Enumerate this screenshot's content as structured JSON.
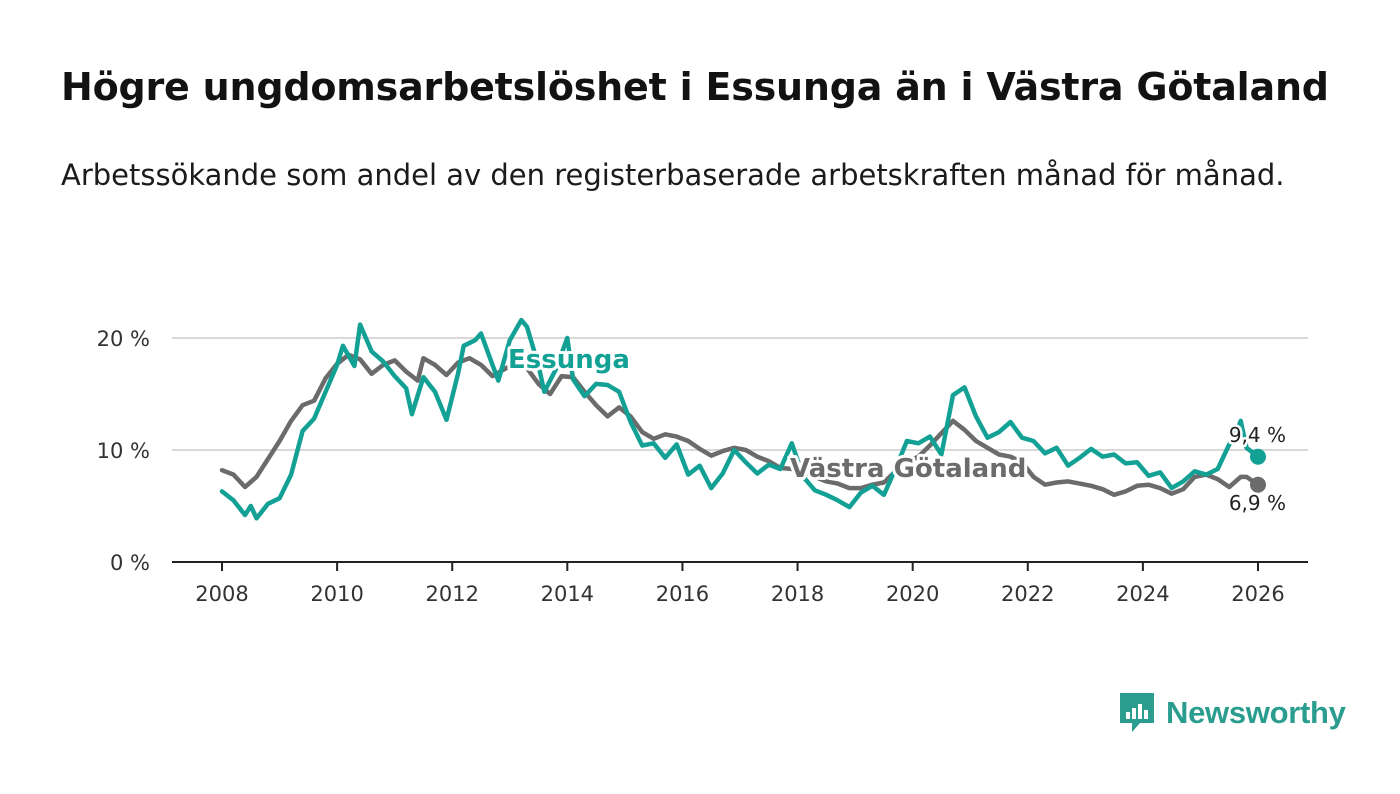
{
  "title": "Högre ungdomsarbetslöshet i Essunga än i Västra Götaland",
  "subtitle": "Arbetssökande som andel av den registerbaserade arbetskraften månad för månad.",
  "brand": {
    "name": "Newsworthy",
    "icon": "newsworthy-logo-icon",
    "color": "#2a9d8f"
  },
  "chart_data": {
    "type": "line",
    "title": "Högre ungdomsarbetslöshet i Essunga än i Västra Götaland",
    "xlabel": "",
    "ylabel": "",
    "x_range": [
      2007.1,
      2026.9
    ],
    "ylim": [
      0,
      20
    ],
    "grid": true,
    "x_ticks": [
      2008,
      2010,
      2012,
      2014,
      2016,
      2018,
      2020,
      2022,
      2024,
      2026
    ],
    "x_tick_labels": [
      "2008",
      "2010",
      "2012",
      "2014",
      "2016",
      "2018",
      "2020",
      "2022",
      "2024",
      "2026"
    ],
    "y_ticks": [
      0,
      10,
      20
    ],
    "y_tick_labels": [
      "0 %",
      "10 %",
      "20 %"
    ],
    "series": [
      {
        "name": "Essunga",
        "color": "#13a196",
        "end_label": "9,4 %",
        "end_value": 9.4,
        "points": [
          [
            2008.0,
            6.3
          ],
          [
            2008.2,
            5.5
          ],
          [
            2008.4,
            4.2
          ],
          [
            2008.5,
            5.0
          ],
          [
            2008.6,
            3.9
          ],
          [
            2008.8,
            5.2
          ],
          [
            2009.0,
            5.7
          ],
          [
            2009.2,
            7.8
          ],
          [
            2009.4,
            11.7
          ],
          [
            2009.6,
            12.8
          ],
          [
            2009.8,
            15.2
          ],
          [
            2010.0,
            17.6
          ],
          [
            2010.1,
            19.3
          ],
          [
            2010.3,
            17.5
          ],
          [
            2010.4,
            21.2
          ],
          [
            2010.6,
            18.8
          ],
          [
            2010.8,
            17.9
          ],
          [
            2011.0,
            16.6
          ],
          [
            2011.2,
            15.5
          ],
          [
            2011.3,
            13.2
          ],
          [
            2011.5,
            16.5
          ],
          [
            2011.7,
            15.2
          ],
          [
            2011.9,
            12.7
          ],
          [
            2012.1,
            16.8
          ],
          [
            2012.2,
            19.3
          ],
          [
            2012.4,
            19.8
          ],
          [
            2012.5,
            20.4
          ],
          [
            2012.7,
            17.6
          ],
          [
            2012.8,
            16.2
          ],
          [
            2013.0,
            19.8
          ],
          [
            2013.2,
            21.6
          ],
          [
            2013.3,
            21.0
          ],
          [
            2013.5,
            17.5
          ],
          [
            2013.6,
            15.2
          ],
          [
            2013.8,
            17.2
          ],
          [
            2014.0,
            20.0
          ],
          [
            2014.1,
            16.3
          ],
          [
            2014.3,
            14.8
          ],
          [
            2014.5,
            15.9
          ],
          [
            2014.7,
            15.8
          ],
          [
            2014.9,
            15.2
          ],
          [
            2015.1,
            12.5
          ],
          [
            2015.3,
            10.4
          ],
          [
            2015.5,
            10.6
          ],
          [
            2015.7,
            9.3
          ],
          [
            2015.9,
            10.5
          ],
          [
            2016.1,
            7.8
          ],
          [
            2016.3,
            8.6
          ],
          [
            2016.5,
            6.6
          ],
          [
            2016.7,
            7.9
          ],
          [
            2016.9,
            10.0
          ],
          [
            2017.1,
            8.9
          ],
          [
            2017.3,
            7.9
          ],
          [
            2017.5,
            8.7
          ],
          [
            2017.7,
            8.3
          ],
          [
            2017.9,
            10.6
          ],
          [
            2018.1,
            7.6
          ],
          [
            2018.3,
            6.4
          ],
          [
            2018.5,
            6.0
          ],
          [
            2018.7,
            5.5
          ],
          [
            2018.9,
            4.9
          ],
          [
            2019.1,
            6.2
          ],
          [
            2019.3,
            6.8
          ],
          [
            2019.5,
            6.0
          ],
          [
            2019.7,
            8.3
          ],
          [
            2019.9,
            10.8
          ],
          [
            2020.1,
            10.6
          ],
          [
            2020.3,
            11.2
          ],
          [
            2020.5,
            9.6
          ],
          [
            2020.7,
            14.9
          ],
          [
            2020.9,
            15.6
          ],
          [
            2021.1,
            13.0
          ],
          [
            2021.3,
            11.1
          ],
          [
            2021.5,
            11.6
          ],
          [
            2021.7,
            12.5
          ],
          [
            2021.9,
            11.1
          ],
          [
            2022.1,
            10.8
          ],
          [
            2022.3,
            9.7
          ],
          [
            2022.5,
            10.2
          ],
          [
            2022.7,
            8.6
          ],
          [
            2022.9,
            9.3
          ],
          [
            2023.1,
            10.1
          ],
          [
            2023.3,
            9.4
          ],
          [
            2023.5,
            9.6
          ],
          [
            2023.7,
            8.8
          ],
          [
            2023.9,
            8.9
          ],
          [
            2024.1,
            7.7
          ],
          [
            2024.3,
            8.0
          ],
          [
            2024.5,
            6.6
          ],
          [
            2024.7,
            7.2
          ],
          [
            2024.9,
            8.1
          ],
          [
            2025.1,
            7.8
          ],
          [
            2025.3,
            8.3
          ],
          [
            2025.5,
            10.5
          ],
          [
            2025.6,
            11.2
          ],
          [
            2025.7,
            12.6
          ],
          [
            2025.8,
            10.2
          ],
          [
            2026.0,
            9.4
          ]
        ]
      },
      {
        "name": "Västra Götaland",
        "color": "#6b6b6b",
        "end_label": "6,9 %",
        "end_value": 6.9,
        "points": [
          [
            2008.0,
            8.2
          ],
          [
            2008.2,
            7.8
          ],
          [
            2008.4,
            6.7
          ],
          [
            2008.6,
            7.6
          ],
          [
            2008.8,
            9.2
          ],
          [
            2009.0,
            10.8
          ],
          [
            2009.2,
            12.6
          ],
          [
            2009.4,
            14.0
          ],
          [
            2009.6,
            14.4
          ],
          [
            2009.8,
            16.4
          ],
          [
            2010.0,
            17.7
          ],
          [
            2010.2,
            18.5
          ],
          [
            2010.4,
            18.1
          ],
          [
            2010.6,
            16.8
          ],
          [
            2010.8,
            17.6
          ],
          [
            2011.0,
            18.0
          ],
          [
            2011.2,
            17.0
          ],
          [
            2011.4,
            16.2
          ],
          [
            2011.5,
            18.2
          ],
          [
            2011.7,
            17.6
          ],
          [
            2011.9,
            16.7
          ],
          [
            2012.1,
            17.8
          ],
          [
            2012.3,
            18.2
          ],
          [
            2012.5,
            17.6
          ],
          [
            2012.7,
            16.6
          ],
          [
            2012.9,
            17.2
          ],
          [
            2013.1,
            17.8
          ],
          [
            2013.3,
            17.3
          ],
          [
            2013.5,
            15.9
          ],
          [
            2013.7,
            15.0
          ],
          [
            2013.9,
            16.6
          ],
          [
            2014.1,
            16.5
          ],
          [
            2014.3,
            15.2
          ],
          [
            2014.5,
            14.0
          ],
          [
            2014.7,
            13.0
          ],
          [
            2014.9,
            13.8
          ],
          [
            2015.1,
            13.0
          ],
          [
            2015.3,
            11.6
          ],
          [
            2015.5,
            11.0
          ],
          [
            2015.7,
            11.4
          ],
          [
            2015.9,
            11.2
          ],
          [
            2016.1,
            10.8
          ],
          [
            2016.3,
            10.1
          ],
          [
            2016.5,
            9.5
          ],
          [
            2016.7,
            9.9
          ],
          [
            2016.9,
            10.2
          ],
          [
            2017.1,
            10.0
          ],
          [
            2017.3,
            9.4
          ],
          [
            2017.5,
            9.0
          ],
          [
            2017.7,
            8.4
          ],
          [
            2017.9,
            8.3
          ],
          [
            2018.1,
            8.1
          ],
          [
            2018.3,
            7.6
          ],
          [
            2018.5,
            7.2
          ],
          [
            2018.7,
            7.0
          ],
          [
            2018.9,
            6.6
          ],
          [
            2019.1,
            6.6
          ],
          [
            2019.3,
            6.9
          ],
          [
            2019.5,
            7.1
          ],
          [
            2019.7,
            8.1
          ],
          [
            2019.9,
            8.9
          ],
          [
            2020.1,
            9.4
          ],
          [
            2020.3,
            10.4
          ],
          [
            2020.5,
            11.5
          ],
          [
            2020.7,
            12.6
          ],
          [
            2020.9,
            11.8
          ],
          [
            2021.1,
            10.8
          ],
          [
            2021.3,
            10.2
          ],
          [
            2021.5,
            9.6
          ],
          [
            2021.7,
            9.4
          ],
          [
            2021.9,
            8.9
          ],
          [
            2022.1,
            7.6
          ],
          [
            2022.3,
            6.9
          ],
          [
            2022.5,
            7.1
          ],
          [
            2022.7,
            7.2
          ],
          [
            2022.9,
            7.0
          ],
          [
            2023.1,
            6.8
          ],
          [
            2023.3,
            6.5
          ],
          [
            2023.5,
            6.0
          ],
          [
            2023.7,
            6.3
          ],
          [
            2023.9,
            6.8
          ],
          [
            2024.1,
            6.9
          ],
          [
            2024.3,
            6.6
          ],
          [
            2024.5,
            6.1
          ],
          [
            2024.7,
            6.5
          ],
          [
            2024.9,
            7.6
          ],
          [
            2025.1,
            7.8
          ],
          [
            2025.3,
            7.4
          ],
          [
            2025.5,
            6.7
          ],
          [
            2025.7,
            7.6
          ],
          [
            2025.8,
            7.6
          ],
          [
            2026.0,
            6.9
          ]
        ]
      }
    ]
  }
}
